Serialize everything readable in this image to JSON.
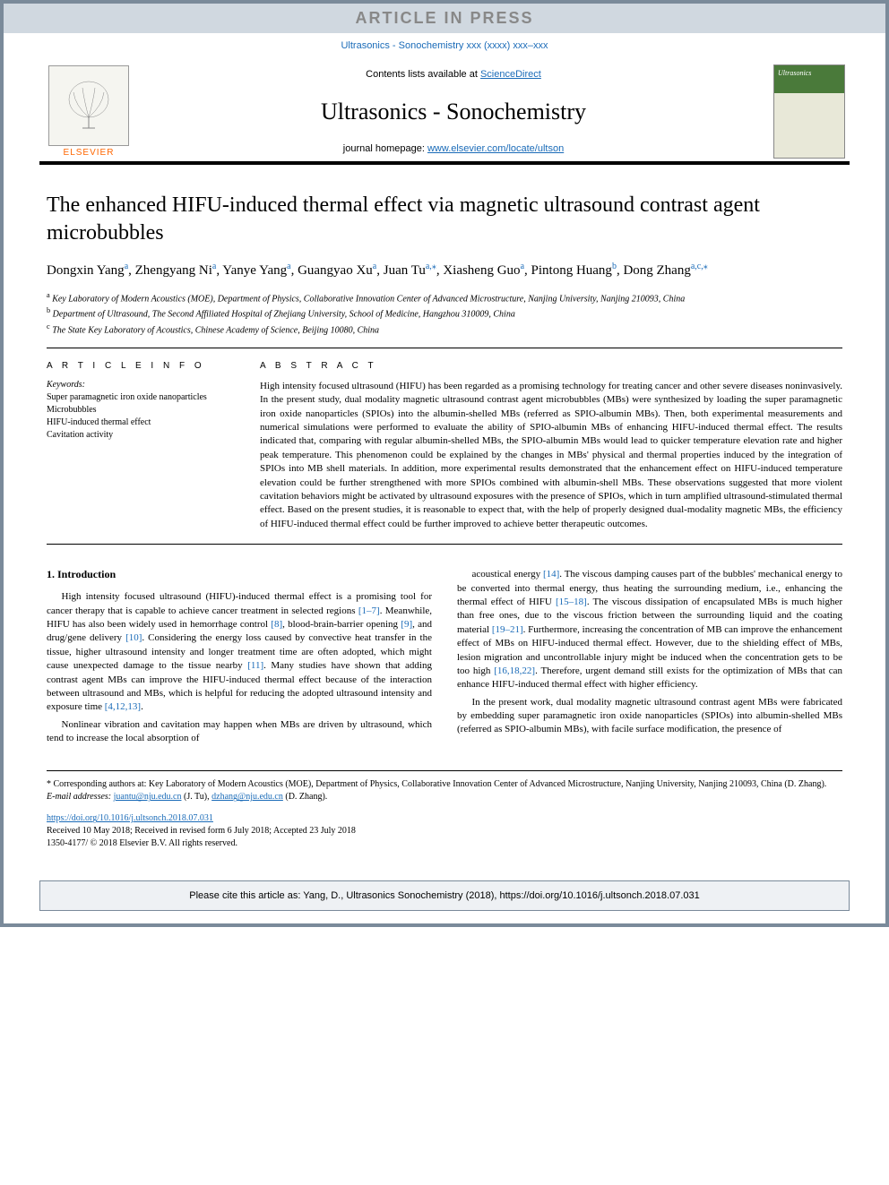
{
  "banner": "ARTICLE IN PRESS",
  "journal_ref_top": "Ultrasonics - Sonochemistry xxx (xxxx) xxx–xxx",
  "header": {
    "contents_prefix": "Contents lists available at ",
    "contents_link": "ScienceDirect",
    "journal_name": "Ultrasonics - Sonochemistry",
    "homepage_prefix": "journal homepage: ",
    "homepage_url": "www.elsevier.com/locate/ultson",
    "elsevier_label": "ELSEVIER",
    "cover_label": "Ultrasonics"
  },
  "title": "The enhanced HIFU-induced thermal effect via magnetic ultrasound contrast agent microbubbles",
  "authors_html": "Dongxin Yang<sup>a</sup>, Zhengyang Ni<sup>a</sup>, Yanye Yang<sup>a</sup>, Guangyao Xu<sup>a</sup>, Juan Tu<sup>a,*</sup>, Xiasheng Guo<sup>a</sup>, Pintong Huang<sup>b</sup>, Dong Zhang<sup>a,c,*</sup>",
  "affiliations": [
    "a Key Laboratory of Modern Acoustics (MOE), Department of Physics, Collaborative Innovation Center of Advanced Microstructure, Nanjing University, Nanjing 210093, China",
    "b Department of Ultrasound, The Second Affiliated Hospital of Zhejiang University, School of Medicine, Hangzhou 310009, China",
    "c The State Key Laboratory of Acoustics, Chinese Academy of Science, Beijing 10080, China"
  ],
  "info_label": "A R T I C L E  I N F O",
  "abstract_label": "A B S T R A C T",
  "keywords_label": "Keywords:",
  "keywords": [
    "Super paramagnetic iron oxide nanoparticles",
    "Microbubbles",
    "HIFU-induced thermal effect",
    "Cavitation activity"
  ],
  "abstract": "High intensity focused ultrasound (HIFU) has been regarded as a promising technology for treating cancer and other severe diseases noninvasively. In the present study, dual modality magnetic ultrasound contrast agent microbubbles (MBs) were synthesized by loading the super paramagnetic iron oxide nanoparticles (SPIOs) into the albumin-shelled MBs (referred as SPIO-albumin MBs). Then, both experimental measurements and numerical simulations were performed to evaluate the ability of SPIO-albumin MBs of enhancing HIFU-induced thermal effect. The results indicated that, comparing with regular albumin-shelled MBs, the SPIO-albumin MBs would lead to quicker temperature elevation rate and higher peak temperature. This phenomenon could be explained by the changes in MBs' physical and thermal properties induced by the integration of SPIOs into MB shell materials. In addition, more experimental results demonstrated that the enhancement effect on HIFU-induced temperature elevation could be further strengthened with more SPIOs combined with albumin-shell MBs. These observations suggested that more violent cavitation behaviors might be activated by ultrasound exposures with the presence of SPIOs, which in turn amplified ultrasound-stimulated thermal effect. Based on the present studies, it is reasonable to expect that, with the help of properly designed dual-modality magnetic MBs, the efficiency of HIFU-induced thermal effect could be further improved to achieve better therapeutic outcomes.",
  "intro_heading": "1. Introduction",
  "intro_left": [
    "High intensity focused ultrasound (HIFU)-induced thermal effect is a promising tool for cancer therapy that is capable to achieve cancer treatment in selected regions [1–7]. Meanwhile, HIFU has also been widely used in hemorrhage control [8], blood-brain-barrier opening [9], and drug/gene delivery [10]. Considering the energy loss caused by convective heat transfer in the tissue, higher ultrasound intensity and longer treatment time are often adopted, which might cause unexpected damage to the tissue nearby [11]. Many studies have shown that adding contrast agent MBs can improve the HIFU-induced thermal effect because of the interaction between ultrasound and MBs, which is helpful for reducing the adopted ultrasound intensity and exposure time [4,12,13].",
    "Nonlinear vibration and cavitation may happen when MBs are driven by ultrasound, which tend to increase the local absorption of"
  ],
  "intro_right": [
    "acoustical energy [14]. The viscous damping causes part of the bubbles' mechanical energy to be converted into thermal energy, thus heating the surrounding medium, i.e., enhancing the thermal effect of HIFU [15–18]. The viscous dissipation of encapsulated MBs is much higher than free ones, due to the viscous friction between the surrounding liquid and the coating material [19–21]. Furthermore, increasing the concentration of MB can improve the enhancement effect of MBs on HIFU-induced thermal effect. However, due to the shielding effect of MBs, lesion migration and uncontrollable injury might be induced when the concentration gets to be too high [16,18,22]. Therefore, urgent demand still exists for the optimization of MBs that can enhance HIFU-induced thermal effect with higher efficiency.",
    "In the present work, dual modality magnetic ultrasound contrast agent MBs were fabricated by embedding super paramagnetic iron oxide nanoparticles (SPIOs) into albumin-shelled MBs (referred as SPIO-albumin MBs), with facile surface modification, the presence of"
  ],
  "footnote": {
    "corr": "* Corresponding authors at: Key Laboratory of Modern Acoustics (MOE), Department of Physics, Collaborative Innovation Center of Advanced Microstructure, Nanjing University, Nanjing 210093, China (D. Zhang).",
    "email_label": "E-mail addresses: ",
    "email1": "juantu@nju.edu.cn",
    "email1_name": " (J. Tu), ",
    "email2": "dzhang@nju.edu.cn",
    "email2_name": " (D. Zhang)."
  },
  "doi": {
    "url": "https://doi.org/10.1016/j.ultsonch.2018.07.031",
    "received": "Received 10 May 2018; Received in revised form 6 July 2018; Accepted 23 July 2018",
    "copyright": "1350-4177/ © 2018 Elsevier B.V. All rights reserved."
  },
  "cite_box": "Please cite this article as: Yang, D., Ultrasonics Sonochemistry (2018), https://doi.org/10.1016/j.ultsonch.2018.07.031",
  "colors": {
    "link": "#1a6bb8",
    "banner_bg": "#d0d8e0",
    "border": "#7a8a9a",
    "elsevier_orange": "#ff6600"
  }
}
